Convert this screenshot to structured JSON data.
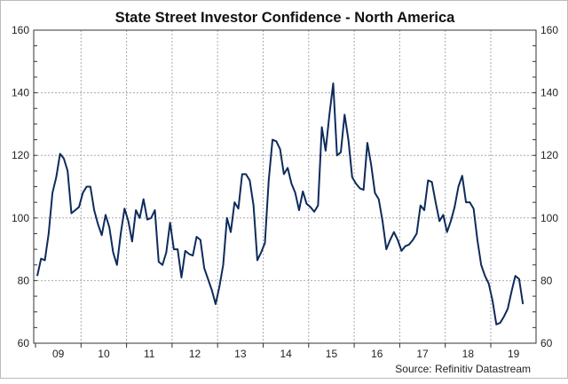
{
  "chart_data": {
    "type": "line",
    "title": "State Street Investor Confidence - North America",
    "source": "Source: Refinitiv Datastream",
    "ylim": [
      60,
      160
    ],
    "yticks": [
      60,
      80,
      100,
      120,
      140,
      160
    ],
    "xtick_labels": [
      "09",
      "10",
      "11",
      "12",
      "13",
      "14",
      "15",
      "16",
      "17",
      "18",
      "19"
    ],
    "grid": true,
    "line_color": "#0d2b5c",
    "start": "2009-01",
    "frequency": "monthly",
    "series": [
      {
        "values": [
          81.5,
          87,
          86.5,
          95,
          108,
          113,
          120.5,
          119,
          115,
          101.5,
          102.5,
          103.5,
          108,
          110,
          110,
          102.5,
          98,
          94.5,
          101,
          97,
          89,
          85,
          95,
          103,
          99,
          92.5,
          102.5,
          100,
          106,
          99.5,
          100,
          102.5,
          86,
          85,
          89,
          98.5,
          90,
          90,
          81,
          89.5,
          88.5,
          88,
          94,
          93,
          84,
          80.5,
          77,
          72.5,
          78,
          85,
          100,
          95.5,
          105,
          103,
          114,
          114,
          112,
          104,
          86.5,
          89,
          92,
          112,
          125,
          124.5,
          122,
          114,
          116,
          111,
          108,
          102.5,
          108.5,
          104.5,
          103.5,
          102,
          104,
          129,
          121.5,
          133,
          143,
          120,
          121,
          133,
          125,
          113,
          111,
          109.5,
          109,
          124,
          117,
          108,
          106,
          99,
          90,
          93,
          95.5,
          93,
          89.5,
          91,
          91.5,
          93,
          95,
          104,
          102.5,
          112,
          111.5,
          105,
          99,
          101,
          95.5,
          99,
          103.5,
          110,
          113.5,
          105,
          105,
          103,
          93,
          85,
          81.5,
          79,
          73.5,
          66,
          66.5,
          68.5,
          71,
          76.5,
          81.5,
          80.5,
          72.5
        ]
      }
    ]
  }
}
